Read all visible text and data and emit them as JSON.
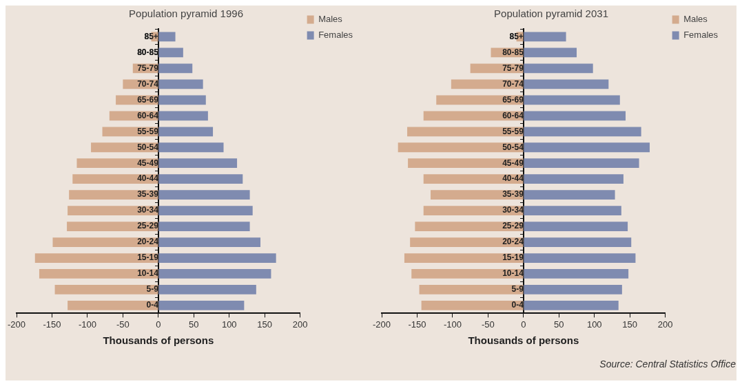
{
  "chart_data": [
    {
      "type": "bar",
      "orientation": "horizontal",
      "stacked": true,
      "title": "Population pyramid 1996",
      "xlabel": "Thousands of persons",
      "categories": [
        "85+",
        "80-85",
        "75-79",
        "70-74",
        "65-69",
        "60-64",
        "55-59",
        "50-54",
        "45-49",
        "40-44",
        "35-39",
        "30-34",
        "25-29",
        "20-24",
        "15-19",
        "10-14",
        "5-9",
        "0-4"
      ],
      "series": [
        {
          "name": "Males",
          "color": "#d4ab8e",
          "values": [
            -10,
            null,
            -36,
            -50,
            -60,
            -69,
            -79,
            -95,
            -115,
            -121,
            -126,
            -128,
            -129,
            -149,
            -174,
            -168,
            -146,
            -128
          ]
        },
        {
          "name": "Females",
          "color": "#7f8bb0",
          "values": [
            24,
            35,
            48,
            63,
            67,
            70,
            77,
            92,
            111,
            119,
            129,
            133,
            129,
            144,
            166,
            159,
            138,
            121
          ]
        }
      ],
      "xlim": [
        -200,
        200
      ],
      "xticks": [
        -200,
        -150,
        -100,
        -50,
        0,
        50,
        100,
        150,
        200
      ],
      "grid": false,
      "legend": "top right"
    },
    {
      "type": "bar",
      "orientation": "horizontal",
      "stacked": true,
      "title": "Population pyramid 2031",
      "xlabel": "Thousands of persons",
      "categories": [
        "85+",
        "80-85",
        "75-79",
        "70-74",
        "65-69",
        "60-64",
        "55-59",
        "50-54",
        "45-49",
        "40-44",
        "35-39",
        "30-34",
        "25-29",
        "20-24",
        "15-19",
        "10-14",
        "5-9",
        "0-4"
      ],
      "series": [
        {
          "name": "Males",
          "color": "#d4ab8e",
          "values": [
            -10,
            -46,
            -75,
            -102,
            -123,
            -141,
            -164,
            -177,
            -163,
            -141,
            -131,
            -141,
            -153,
            -160,
            -168,
            -158,
            -147,
            -144
          ]
        },
        {
          "name": "Females",
          "color": "#7f8bb0",
          "values": [
            60,
            75,
            98,
            120,
            136,
            144,
            166,
            178,
            163,
            141,
            129,
            138,
            147,
            152,
            158,
            148,
            139,
            134
          ]
        }
      ],
      "xlim": [
        -200,
        200
      ],
      "xticks": [
        -200,
        -150,
        -100,
        -50,
        0,
        50,
        100,
        150,
        200
      ],
      "grid": false,
      "legend": "top right",
      "annotations": [
        "Source: Central Statistics Office"
      ]
    }
  ]
}
